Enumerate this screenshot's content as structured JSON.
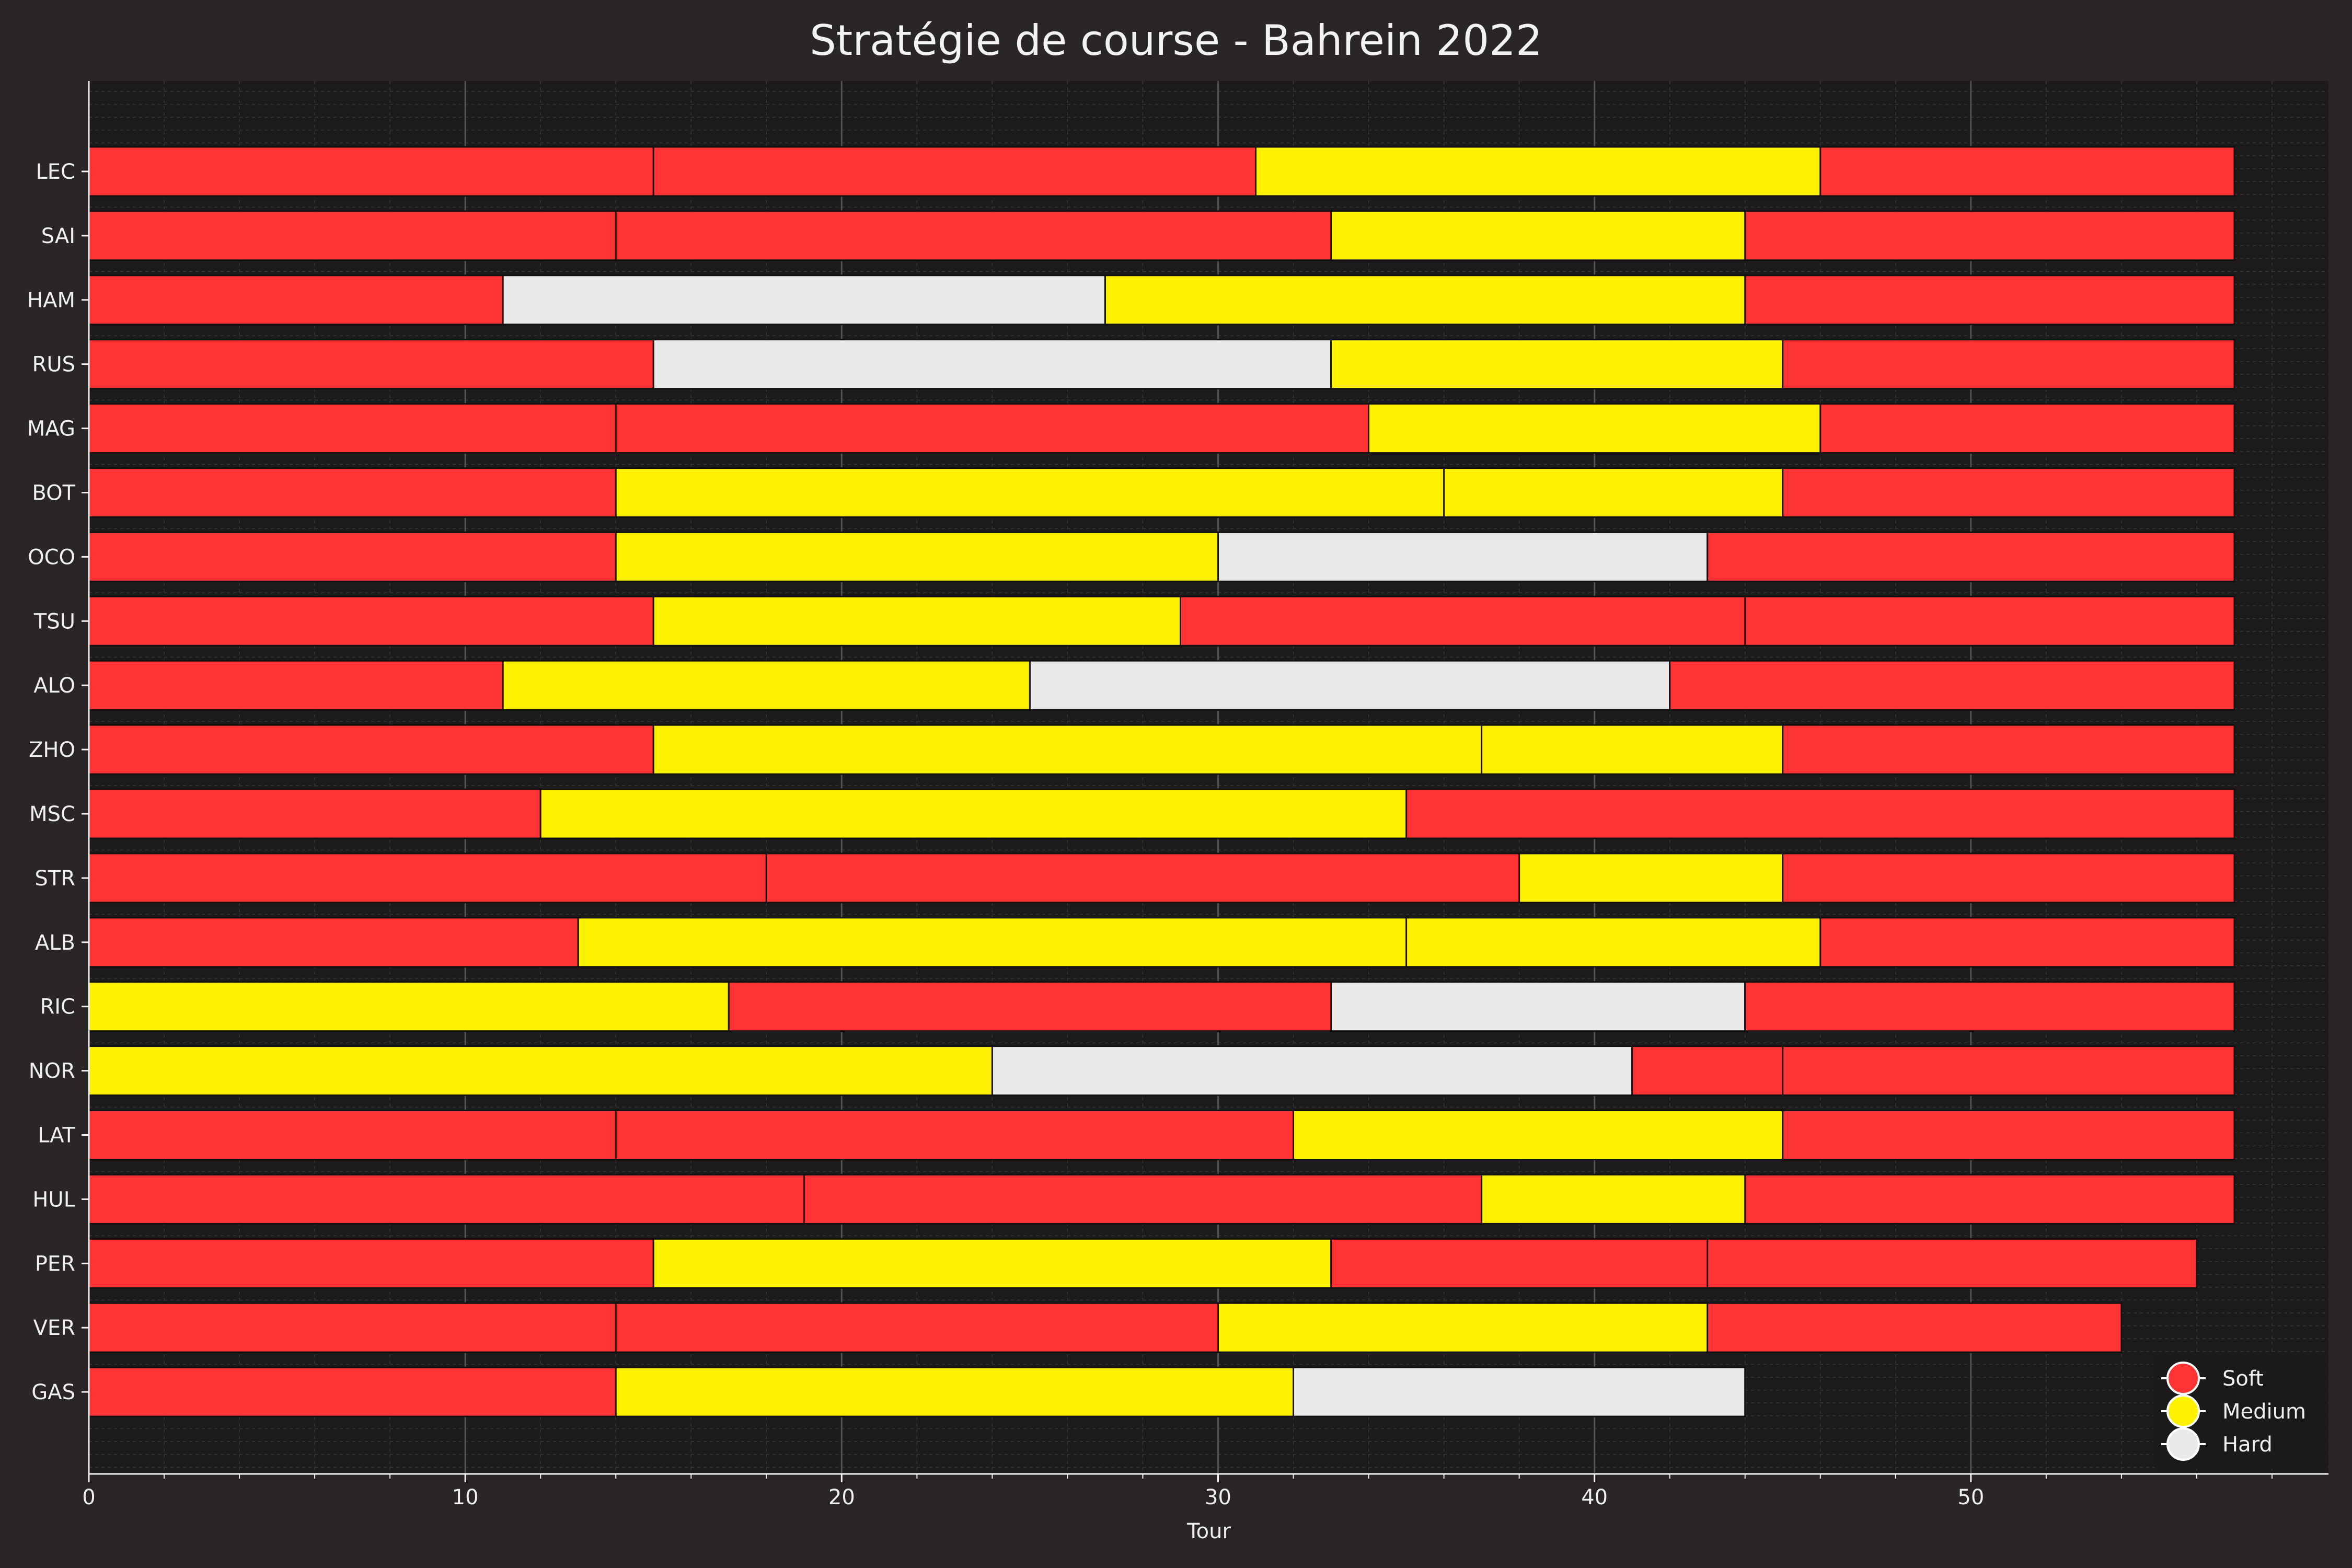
{
  "chart_data": {
    "type": "bar",
    "orientation": "horizontal-stacked",
    "title": "Stratégie de course - Bahrein 2022",
    "xlabel": "Tour",
    "ylabel": "",
    "xlim": [
      0,
      59.5
    ],
    "xticks": [
      "0",
      "10",
      "20",
      "30",
      "40",
      "50"
    ],
    "grid": true,
    "legend_position": "bottom-right",
    "colors": {
      "background": "#292625",
      "plot_background": "#1c1a1a",
      "Soft": "#ff3333",
      "Medium": "#fff200",
      "Hard": "#eaeaea",
      "stint_border": "#111111",
      "text": "#f0f0f0"
    },
    "legend": [
      {
        "label": "Soft",
        "compound": "Soft"
      },
      {
        "label": "Medium",
        "compound": "Medium"
      },
      {
        "label": "Hard",
        "compound": "Hard"
      }
    ],
    "drivers": [
      {
        "name": "LEC",
        "stints": [
          {
            "start": 0,
            "end": 15,
            "compound": "Soft"
          },
          {
            "start": 15,
            "end": 31,
            "compound": "Soft"
          },
          {
            "start": 31,
            "end": 46,
            "compound": "Medium"
          },
          {
            "start": 46,
            "end": 57,
            "compound": "Soft"
          }
        ]
      },
      {
        "name": "SAI",
        "stints": [
          {
            "start": 0,
            "end": 14,
            "compound": "Soft"
          },
          {
            "start": 14,
            "end": 33,
            "compound": "Soft"
          },
          {
            "start": 33,
            "end": 44,
            "compound": "Medium"
          },
          {
            "start": 44,
            "end": 57,
            "compound": "Soft"
          }
        ]
      },
      {
        "name": "HAM",
        "stints": [
          {
            "start": 0,
            "end": 11,
            "compound": "Soft"
          },
          {
            "start": 11,
            "end": 27,
            "compound": "Hard"
          },
          {
            "start": 27,
            "end": 44,
            "compound": "Medium"
          },
          {
            "start": 44,
            "end": 57,
            "compound": "Soft"
          }
        ]
      },
      {
        "name": "RUS",
        "stints": [
          {
            "start": 0,
            "end": 15,
            "compound": "Soft"
          },
          {
            "start": 15,
            "end": 33,
            "compound": "Hard"
          },
          {
            "start": 33,
            "end": 45,
            "compound": "Medium"
          },
          {
            "start": 45,
            "end": 57,
            "compound": "Soft"
          }
        ]
      },
      {
        "name": "MAG",
        "stints": [
          {
            "start": 0,
            "end": 14,
            "compound": "Soft"
          },
          {
            "start": 14,
            "end": 34,
            "compound": "Soft"
          },
          {
            "start": 34,
            "end": 46,
            "compound": "Medium"
          },
          {
            "start": 46,
            "end": 57,
            "compound": "Soft"
          }
        ]
      },
      {
        "name": "BOT",
        "stints": [
          {
            "start": 0,
            "end": 14,
            "compound": "Soft"
          },
          {
            "start": 14,
            "end": 36,
            "compound": "Medium"
          },
          {
            "start": 36,
            "end": 45,
            "compound": "Medium"
          },
          {
            "start": 45,
            "end": 57,
            "compound": "Soft"
          }
        ]
      },
      {
        "name": "OCO",
        "stints": [
          {
            "start": 0,
            "end": 14,
            "compound": "Soft"
          },
          {
            "start": 14,
            "end": 30,
            "compound": "Medium"
          },
          {
            "start": 30,
            "end": 43,
            "compound": "Hard"
          },
          {
            "start": 43,
            "end": 57,
            "compound": "Soft"
          }
        ]
      },
      {
        "name": "TSU",
        "stints": [
          {
            "start": 0,
            "end": 15,
            "compound": "Soft"
          },
          {
            "start": 15,
            "end": 29,
            "compound": "Medium"
          },
          {
            "start": 29,
            "end": 44,
            "compound": "Soft"
          },
          {
            "start": 44,
            "end": 57,
            "compound": "Soft"
          }
        ]
      },
      {
        "name": "ALO",
        "stints": [
          {
            "start": 0,
            "end": 11,
            "compound": "Soft"
          },
          {
            "start": 11,
            "end": 25,
            "compound": "Medium"
          },
          {
            "start": 25,
            "end": 42,
            "compound": "Hard"
          },
          {
            "start": 42,
            "end": 57,
            "compound": "Soft"
          }
        ]
      },
      {
        "name": "ZHO",
        "stints": [
          {
            "start": 0,
            "end": 15,
            "compound": "Soft"
          },
          {
            "start": 15,
            "end": 37,
            "compound": "Medium"
          },
          {
            "start": 37,
            "end": 45,
            "compound": "Medium"
          },
          {
            "start": 45,
            "end": 57,
            "compound": "Soft"
          }
        ]
      },
      {
        "name": "MSC",
        "stints": [
          {
            "start": 0,
            "end": 12,
            "compound": "Soft"
          },
          {
            "start": 12,
            "end": 35,
            "compound": "Medium"
          },
          {
            "start": 35,
            "end": 57,
            "compound": "Soft"
          }
        ]
      },
      {
        "name": "STR",
        "stints": [
          {
            "start": 0,
            "end": 18,
            "compound": "Soft"
          },
          {
            "start": 18,
            "end": 38,
            "compound": "Soft"
          },
          {
            "start": 38,
            "end": 45,
            "compound": "Medium"
          },
          {
            "start": 45,
            "end": 57,
            "compound": "Soft"
          }
        ]
      },
      {
        "name": "ALB",
        "stints": [
          {
            "start": 0,
            "end": 13,
            "compound": "Soft"
          },
          {
            "start": 13,
            "end": 35,
            "compound": "Medium"
          },
          {
            "start": 35,
            "end": 46,
            "compound": "Medium"
          },
          {
            "start": 46,
            "end": 57,
            "compound": "Soft"
          }
        ]
      },
      {
        "name": "RIC",
        "stints": [
          {
            "start": 0,
            "end": 17,
            "compound": "Medium"
          },
          {
            "start": 17,
            "end": 33,
            "compound": "Soft"
          },
          {
            "start": 33,
            "end": 44,
            "compound": "Hard"
          },
          {
            "start": 44,
            "end": 57,
            "compound": "Soft"
          }
        ]
      },
      {
        "name": "NOR",
        "stints": [
          {
            "start": 0,
            "end": 24,
            "compound": "Medium"
          },
          {
            "start": 24,
            "end": 41,
            "compound": "Hard"
          },
          {
            "start": 41,
            "end": 45,
            "compound": "Soft"
          },
          {
            "start": 45,
            "end": 57,
            "compound": "Soft"
          }
        ]
      },
      {
        "name": "LAT",
        "stints": [
          {
            "start": 0,
            "end": 14,
            "compound": "Soft"
          },
          {
            "start": 14,
            "end": 32,
            "compound": "Soft"
          },
          {
            "start": 32,
            "end": 45,
            "compound": "Medium"
          },
          {
            "start": 45,
            "end": 57,
            "compound": "Soft"
          }
        ]
      },
      {
        "name": "HUL",
        "stints": [
          {
            "start": 0,
            "end": 19,
            "compound": "Soft"
          },
          {
            "start": 19,
            "end": 37,
            "compound": "Soft"
          },
          {
            "start": 37,
            "end": 44,
            "compound": "Medium"
          },
          {
            "start": 44,
            "end": 57,
            "compound": "Soft"
          }
        ]
      },
      {
        "name": "PER",
        "stints": [
          {
            "start": 0,
            "end": 15,
            "compound": "Soft"
          },
          {
            "start": 15,
            "end": 33,
            "compound": "Medium"
          },
          {
            "start": 33,
            "end": 43,
            "compound": "Soft"
          },
          {
            "start": 43,
            "end": 56,
            "compound": "Soft"
          }
        ]
      },
      {
        "name": "VER",
        "stints": [
          {
            "start": 0,
            "end": 14,
            "compound": "Soft"
          },
          {
            "start": 14,
            "end": 30,
            "compound": "Soft"
          },
          {
            "start": 30,
            "end": 43,
            "compound": "Medium"
          },
          {
            "start": 43,
            "end": 54,
            "compound": "Soft"
          }
        ]
      },
      {
        "name": "GAS",
        "stints": [
          {
            "start": 0,
            "end": 14,
            "compound": "Soft"
          },
          {
            "start": 14,
            "end": 32,
            "compound": "Medium"
          },
          {
            "start": 32,
            "end": 44,
            "compound": "Hard"
          }
        ]
      }
    ]
  }
}
